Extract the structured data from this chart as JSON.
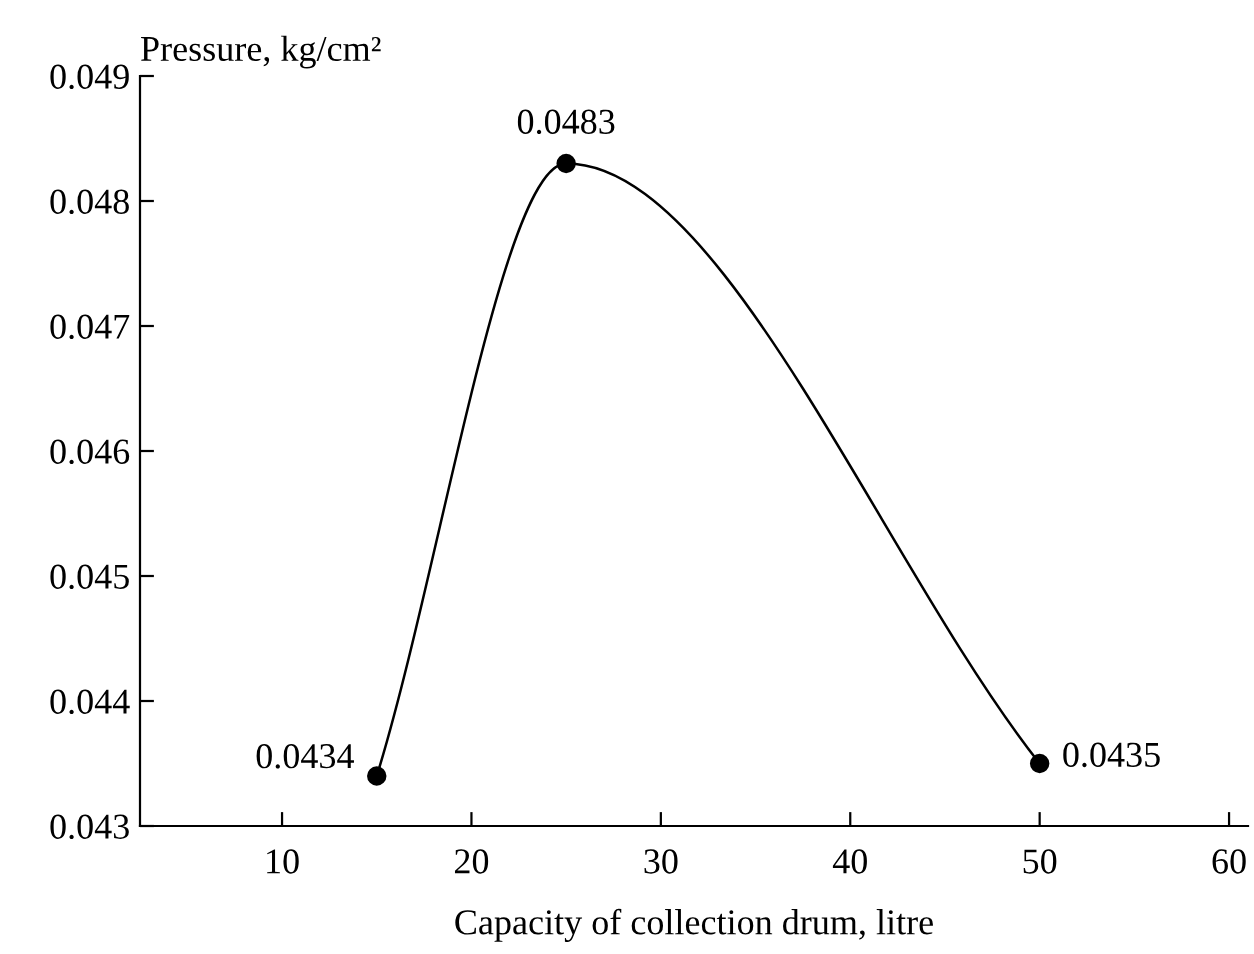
{
  "chart_data": {
    "type": "line",
    "xlabel": "Capacity of collection drum, litre",
    "ylabel": "Pressure, kg/cm²",
    "x": [
      15,
      25,
      50
    ],
    "series": [
      {
        "color": "#000000",
        "values": [
          0.0434,
          0.0483,
          0.0435
        ]
      }
    ],
    "data_labels": true,
    "marker": "circle",
    "line_style": "solid",
    "grid": false,
    "legend": false,
    "xlim": [
      2.5,
      61
    ],
    "xticks": [
      10,
      20,
      30,
      40,
      50,
      60
    ],
    "ylim": [
      0.043,
      0.049
    ],
    "yticks": [
      0.043,
      0.044,
      0.045,
      0.046,
      0.047,
      0.048,
      0.049
    ]
  }
}
